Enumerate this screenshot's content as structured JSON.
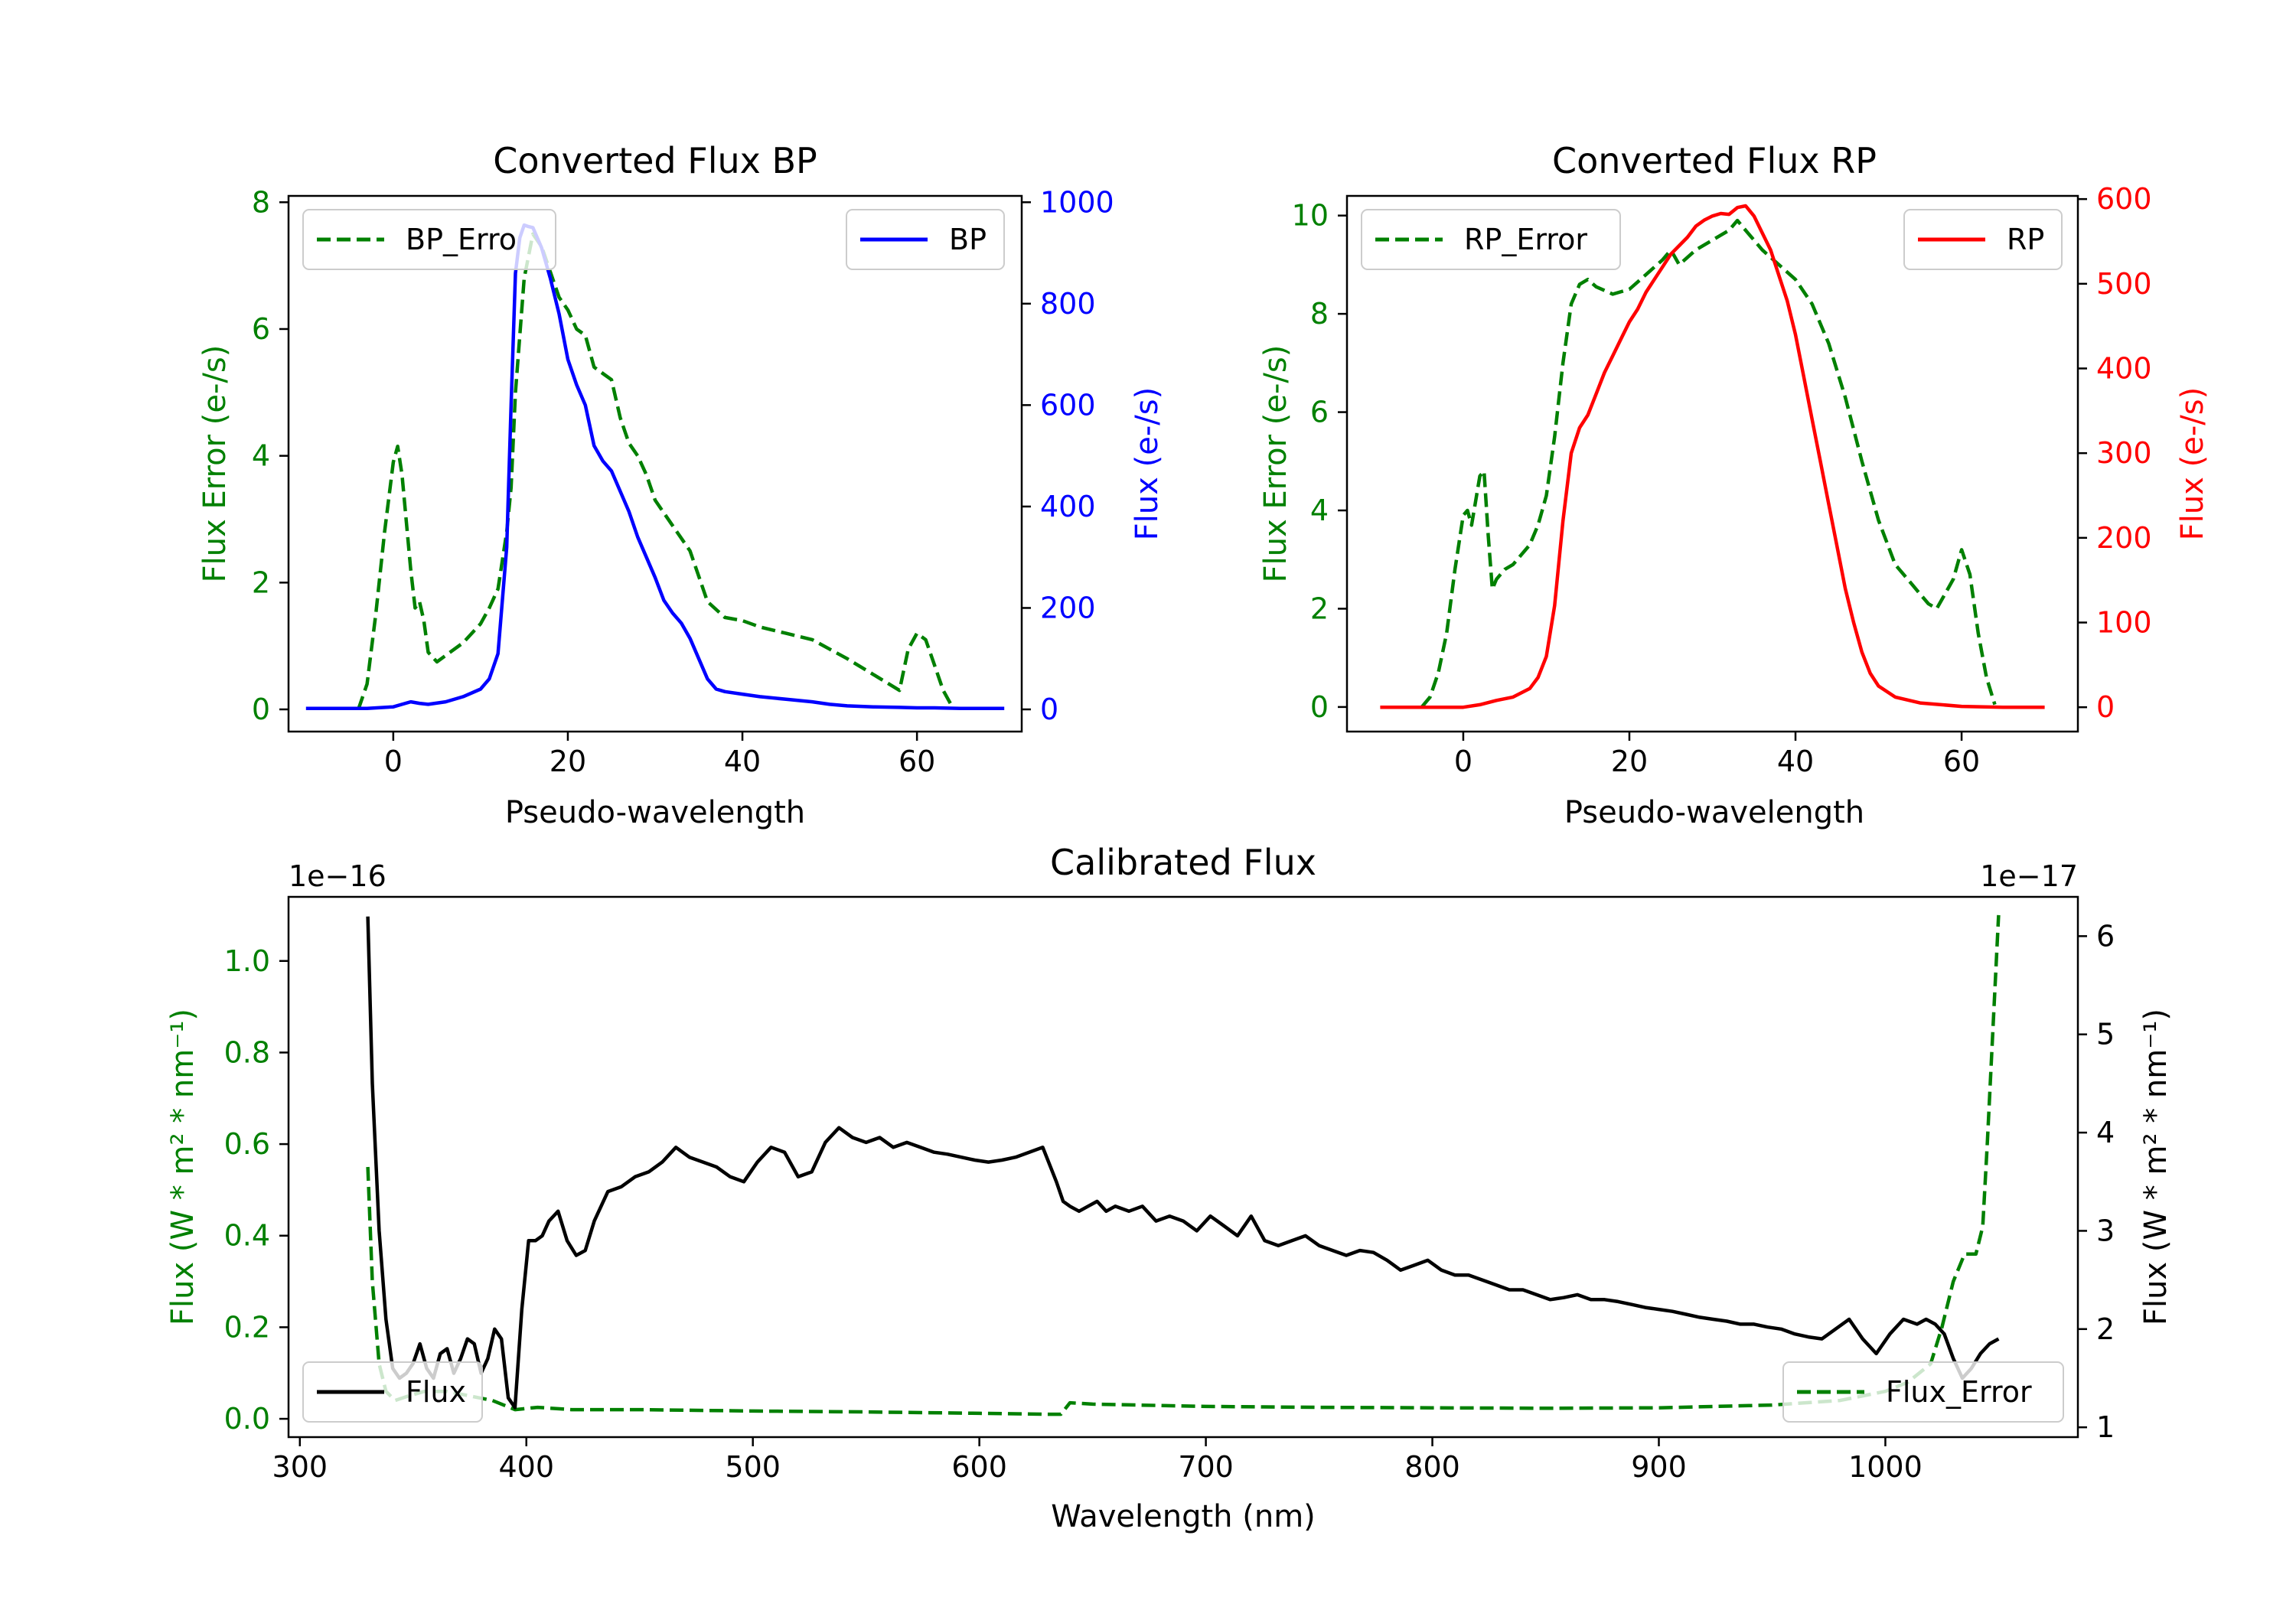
{
  "colors": {
    "green": "#008000",
    "blue": "#0000ff",
    "red": "#ff0000",
    "black": "#000000"
  },
  "chart_data": [
    {
      "id": "bp",
      "type": "line",
      "title": "Converted Flux BP",
      "xlabel": "Pseudo-wavelength",
      "ylabel_left": "Flux Error (e-/s)",
      "ylabel_right": "Flux (e-/s)",
      "xlim": [
        -12,
        72
      ],
      "ylim_left": [
        -0.35,
        8.1
      ],
      "ylim_right": [
        -43.75,
        1012.5
      ],
      "xticks": [
        0,
        20,
        40,
        60
      ],
      "xtick_labels": [
        "0",
        "20",
        "40",
        "60"
      ],
      "yticks_left": [
        0,
        2,
        4,
        6,
        8
      ],
      "ytick_labels_left": [
        "0",
        "2",
        "4",
        "6",
        "8"
      ],
      "yticks_right": [
        0,
        200,
        400,
        600,
        800,
        1000
      ],
      "ytick_labels_right": [
        "0",
        "200",
        "400",
        "600",
        "800",
        "1000"
      ],
      "legend_left": "BP_Erro",
      "legend_right": "BP",
      "series": [
        {
          "name": "BP_Error",
          "axis": "left",
          "color": "green",
          "dash": true,
          "x": [
            -4,
            -3,
            -2,
            -1,
            0,
            0.5,
            1,
            2,
            2.5,
            3,
            3.5,
            4,
            5,
            6,
            8,
            10,
            11,
            12,
            13,
            13.5,
            14,
            15,
            16,
            17,
            18,
            19,
            20,
            21,
            22,
            23,
            24,
            25,
            26,
            27,
            28,
            29,
            30,
            32,
            34,
            35,
            36,
            38,
            40,
            42,
            45,
            48,
            50,
            52,
            55,
            58,
            59,
            60,
            61,
            62,
            63,
            64
          ],
          "y": [
            0,
            0.4,
            1.5,
            2.8,
            3.9,
            4.15,
            3.7,
            2.2,
            1.6,
            1.7,
            1.4,
            0.9,
            0.75,
            0.85,
            1.05,
            1.35,
            1.6,
            1.9,
            2.8,
            3.5,
            5.0,
            6.8,
            7.5,
            7.3,
            6.9,
            6.5,
            6.3,
            6.0,
            5.9,
            5.4,
            5.3,
            5.2,
            4.6,
            4.2,
            4.0,
            3.7,
            3.3,
            2.9,
            2.5,
            2.1,
            1.7,
            1.45,
            1.4,
            1.3,
            1.2,
            1.1,
            0.95,
            0.8,
            0.55,
            0.3,
            0.95,
            1.2,
            1.1,
            0.7,
            0.3,
            0.05
          ]
        },
        {
          "name": "BP",
          "axis": "right",
          "color": "blue",
          "dash": false,
          "x": [
            -10,
            -6,
            -3,
            0,
            1,
            2,
            3,
            4,
            6,
            8,
            10,
            11,
            12,
            13,
            13.5,
            14,
            14.5,
            15,
            15.5,
            16,
            17,
            18,
            19,
            20,
            21,
            22,
            23,
            24,
            25,
            26,
            27,
            28,
            29,
            30,
            31,
            32,
            33,
            34,
            35,
            36,
            37,
            38,
            40,
            42,
            45,
            48,
            50,
            52,
            55,
            58,
            60,
            62,
            65,
            70
          ],
          "y": [
            2,
            2,
            2,
            5,
            10,
            15,
            12,
            10,
            15,
            25,
            40,
            60,
            110,
            320,
            600,
            860,
            930,
            955,
            952,
            950,
            910,
            850,
            780,
            690,
            640,
            600,
            520,
            490,
            470,
            430,
            390,
            340,
            300,
            260,
            215,
            190,
            170,
            140,
            100,
            60,
            40,
            35,
            30,
            25,
            20,
            15,
            10,
            7,
            5,
            4,
            3,
            3,
            2,
            2
          ]
        }
      ]
    },
    {
      "id": "rp",
      "type": "line",
      "title": "Converted Flux RP",
      "xlabel": "Pseudo-wavelength",
      "ylabel_left": "Flux Error (e-/s)",
      "ylabel_right": "Flux (e-/s)",
      "xlim": [
        -14,
        74
      ],
      "ylim_left": [
        -0.5,
        10.4
      ],
      "ylim_right": [
        -28.75,
        603.75
      ],
      "xticks": [
        0,
        20,
        40,
        60
      ],
      "xtick_labels": [
        "0",
        "20",
        "40",
        "60"
      ],
      "yticks_left": [
        0,
        2,
        4,
        6,
        8,
        10
      ],
      "ytick_labels_left": [
        "0",
        "2",
        "4",
        "6",
        "8",
        "10"
      ],
      "yticks_right": [
        0,
        100,
        200,
        300,
        400,
        500,
        600
      ],
      "ytick_labels_right": [
        "0",
        "100",
        "200",
        "300",
        "400",
        "500",
        "600"
      ],
      "legend_left": "RP_Error",
      "legend_right": "RP",
      "series": [
        {
          "name": "RP_Error",
          "axis": "left",
          "color": "green",
          "dash": true,
          "x": [
            -5,
            -4,
            -3,
            -2,
            -1,
            0,
            0.5,
            1,
            1.5,
            2,
            2.5,
            3,
            3.5,
            4,
            5,
            6,
            7,
            8,
            9,
            10,
            11,
            12,
            13,
            14,
            15,
            16,
            18,
            20,
            22,
            24,
            25,
            26,
            28,
            30,
            32,
            33,
            34,
            35,
            36,
            38,
            40,
            42,
            44,
            46,
            48,
            50,
            52,
            54,
            55,
            56,
            57,
            58,
            59,
            60,
            61,
            62,
            63,
            64
          ],
          "y": [
            0,
            0.2,
            0.7,
            1.5,
            2.8,
            3.9,
            4.0,
            3.7,
            4.2,
            4.7,
            4.8,
            3.5,
            2.4,
            2.6,
            2.8,
            2.9,
            3.1,
            3.3,
            3.7,
            4.3,
            5.5,
            7.0,
            8.2,
            8.6,
            8.7,
            8.55,
            8.4,
            8.5,
            8.8,
            9.1,
            9.3,
            9.0,
            9.3,
            9.5,
            9.7,
            9.9,
            9.7,
            9.5,
            9.3,
            9.0,
            8.7,
            8.2,
            7.4,
            6.3,
            5.0,
            3.8,
            2.9,
            2.5,
            2.3,
            2.1,
            2.0,
            2.3,
            2.6,
            3.2,
            2.7,
            1.5,
            0.6,
            0.05
          ]
        },
        {
          "name": "RP",
          "axis": "right",
          "color": "red",
          "dash": false,
          "x": [
            -10,
            -5,
            0,
            2,
            4,
            6,
            8,
            9,
            10,
            11,
            12,
            13,
            14,
            15,
            16,
            17,
            18,
            19,
            20,
            21,
            22,
            23,
            24,
            25,
            26,
            27,
            28,
            29,
            30,
            31,
            32,
            33,
            34,
            35,
            36,
            37,
            38,
            39,
            40,
            41,
            42,
            43,
            44,
            45,
            46,
            47,
            48,
            49,
            50,
            52,
            55,
            60,
            65,
            70
          ],
          "y": [
            0,
            0,
            0,
            3,
            8,
            12,
            22,
            35,
            60,
            120,
            220,
            300,
            330,
            345,
            370,
            395,
            415,
            435,
            455,
            470,
            490,
            505,
            520,
            535,
            545,
            555,
            568,
            575,
            580,
            583,
            582,
            590,
            592,
            580,
            560,
            540,
            510,
            480,
            440,
            390,
            340,
            290,
            240,
            190,
            140,
            100,
            65,
            40,
            25,
            12,
            5,
            1,
            0,
            0
          ]
        }
      ]
    },
    {
      "id": "cal",
      "type": "line",
      "title": "Calibrated Flux",
      "xlabel": "Wavelength (nm)",
      "ylabel_left": "Flux (W * m² * nm⁻¹)",
      "ylabel_right": "Flux (W * m² * nm⁻¹)",
      "left_offset_text": "1e−16",
      "right_offset_text": "1e−17",
      "xlim": [
        295,
        1085
      ],
      "ylim_left": [
        -0.04,
        1.14
      ],
      "ylim_right": [
        0.9,
        6.4
      ],
      "xticks": [
        300,
        400,
        500,
        600,
        700,
        800,
        900,
        1000
      ],
      "xtick_labels": [
        "300",
        "400",
        "500",
        "600",
        "700",
        "800",
        "900",
        "1000"
      ],
      "yticks_left": [
        0,
        0.2,
        0.4,
        0.6,
        0.8,
        1.0
      ],
      "ytick_labels_left": [
        "0.0",
        "0.2",
        "0.4",
        "0.6",
        "0.8",
        "1.0"
      ],
      "yticks_right": [
        1,
        2,
        3,
        4,
        5,
        6
      ],
      "ytick_labels_right": [
        "1",
        "2",
        "3",
        "4",
        "5",
        "6"
      ],
      "legend_left": "Flux",
      "legend_right": "Flux_Error",
      "series": [
        {
          "name": "Flux_Error",
          "axis": "left",
          "color": "green",
          "dash": true,
          "x": [
            330,
            332,
            335,
            338,
            342,
            348,
            355,
            365,
            375,
            385,
            395,
            405,
            420,
            450,
            500,
            550,
            600,
            630,
            636,
            640,
            650,
            700,
            750,
            800,
            850,
            900,
            950,
            980,
            1000,
            1010,
            1020,
            1025,
            1030,
            1035,
            1040,
            1043,
            1045,
            1047,
            1050
          ],
          "y": [
            0.55,
            0.3,
            0.12,
            0.06,
            0.04,
            0.05,
            0.06,
            0.06,
            0.05,
            0.04,
            0.02,
            0.025,
            0.02,
            0.02,
            0.017,
            0.015,
            0.012,
            0.01,
            0.01,
            0.035,
            0.032,
            0.027,
            0.025,
            0.024,
            0.023,
            0.024,
            0.03,
            0.04,
            0.06,
            0.08,
            0.12,
            0.2,
            0.3,
            0.36,
            0.36,
            0.42,
            0.6,
            0.8,
            1.1
          ]
        },
        {
          "name": "Flux",
          "axis": "right",
          "color": "black",
          "dash": false,
          "x": [
            330,
            332,
            335,
            338,
            341,
            344,
            347,
            350,
            353,
            356,
            359,
            362,
            365,
            368,
            371,
            374,
            377,
            380,
            383,
            386,
            389,
            392,
            395,
            398,
            401,
            404,
            407,
            410,
            414,
            418,
            422,
            426,
            430,
            436,
            442,
            448,
            454,
            460,
            466,
            472,
            478,
            484,
            490,
            496,
            502,
            508,
            514,
            520,
            526,
            532,
            538,
            544,
            550,
            556,
            562,
            568,
            574,
            580,
            586,
            592,
            598,
            604,
            610,
            616,
            622,
            628,
            634,
            637,
            640,
            644,
            648,
            652,
            656,
            660,
            666,
            672,
            678,
            684,
            690,
            696,
            702,
            708,
            714,
            720,
            726,
            732,
            738,
            744,
            750,
            756,
            762,
            768,
            774,
            780,
            786,
            792,
            798,
            804,
            810,
            816,
            822,
            828,
            834,
            840,
            846,
            852,
            858,
            864,
            870,
            876,
            882,
            888,
            894,
            900,
            906,
            912,
            918,
            924,
            930,
            936,
            942,
            948,
            954,
            960,
            966,
            972,
            978,
            984,
            990,
            996,
            1002,
            1008,
            1014,
            1018,
            1022,
            1026,
            1030,
            1034,
            1038,
            1042,
            1046,
            1050
          ],
          "y": [
            6.2,
            4.5,
            3.0,
            2.1,
            1.6,
            1.5,
            1.55,
            1.65,
            1.85,
            1.6,
            1.5,
            1.75,
            1.8,
            1.55,
            1.7,
            1.9,
            1.85,
            1.55,
            1.7,
            2.0,
            1.9,
            1.3,
            1.2,
            2.2,
            2.9,
            2.9,
            2.95,
            3.1,
            3.2,
            2.9,
            2.75,
            2.8,
            3.1,
            3.4,
            3.45,
            3.55,
            3.6,
            3.7,
            3.85,
            3.75,
            3.7,
            3.65,
            3.55,
            3.5,
            3.7,
            3.85,
            3.8,
            3.55,
            3.6,
            3.9,
            4.05,
            3.95,
            3.9,
            3.95,
            3.85,
            3.9,
            3.85,
            3.8,
            3.78,
            3.75,
            3.72,
            3.7,
            3.72,
            3.75,
            3.8,
            3.85,
            3.5,
            3.3,
            3.25,
            3.2,
            3.25,
            3.3,
            3.2,
            3.25,
            3.2,
            3.25,
            3.1,
            3.15,
            3.1,
            3.0,
            3.15,
            3.05,
            2.95,
            3.15,
            2.9,
            2.85,
            2.9,
            2.95,
            2.85,
            2.8,
            2.75,
            2.8,
            2.78,
            2.7,
            2.6,
            2.65,
            2.7,
            2.6,
            2.55,
            2.55,
            2.5,
            2.45,
            2.4,
            2.4,
            2.35,
            2.3,
            2.32,
            2.35,
            2.3,
            2.3,
            2.28,
            2.25,
            2.22,
            2.2,
            2.18,
            2.15,
            2.12,
            2.1,
            2.08,
            2.05,
            2.05,
            2.02,
            2.0,
            1.95,
            1.92,
            1.9,
            2.0,
            2.1,
            1.9,
            1.75,
            1.95,
            2.1,
            2.05,
            2.1,
            2.05,
            1.95,
            1.7,
            1.5,
            1.6,
            1.75,
            1.85,
            1.9
          ]
        }
      ]
    }
  ]
}
